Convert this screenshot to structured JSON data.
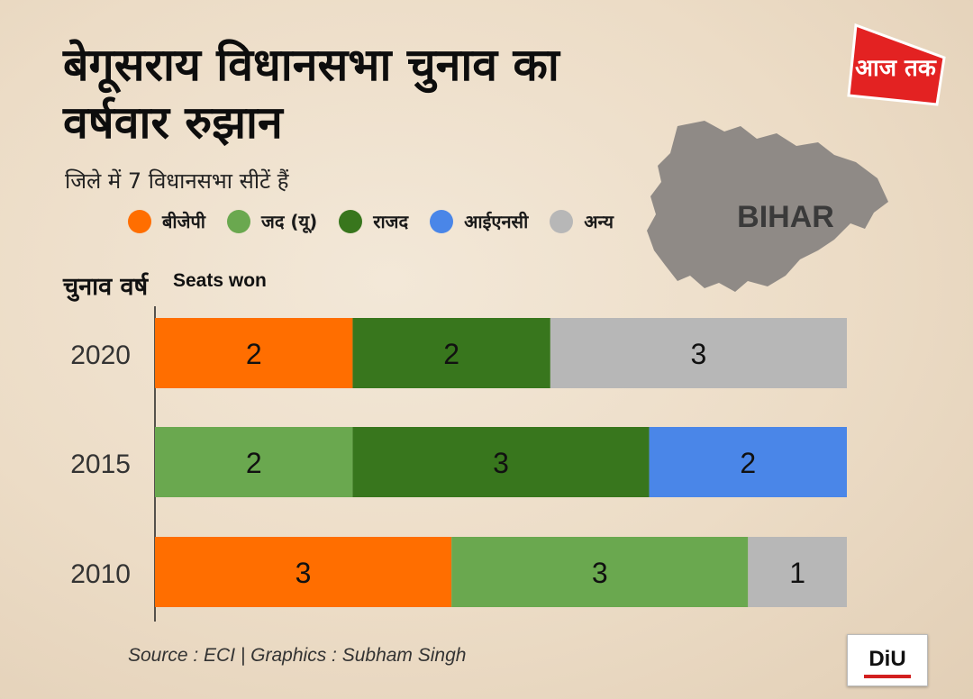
{
  "header": {
    "title_line1": "बेगूसराय विधानसभा चुनाव का",
    "title_line2": "वर्षवार रुझान",
    "subtitle": "जिले में 7 विधानसभा सीटें हैं"
  },
  "legend": [
    {
      "label": "बीजेपी",
      "color": "#ff6e00"
    },
    {
      "label": "जद (यू)",
      "color": "#6aa84f"
    },
    {
      "label": "राजद",
      "color": "#38761d"
    },
    {
      "label": "आईएनसी",
      "color": "#4a86e8"
    },
    {
      "label": "अन्य",
      "color": "#b7b7b7"
    }
  ],
  "map": {
    "label": "BIHAR",
    "color": "#8f8a86"
  },
  "logos": {
    "aaj_tak_text": "आज तक",
    "diu_text": "DiU"
  },
  "footer": {
    "source": "Source : ECI | Graphics : Subham Singh"
  },
  "chart_data": {
    "type": "bar",
    "orientation": "horizontal",
    "stacked": true,
    "ylabel": "चुनाव वर्ष",
    "xlabel": "Seats won",
    "xlim": [
      0,
      7
    ],
    "rows": [
      {
        "year": "2020",
        "segments": [
          {
            "party": "बीजेपी",
            "value": 2,
            "color": "#ff6e00"
          },
          {
            "party": "राजद",
            "value": 2,
            "color": "#38761d"
          },
          {
            "party": "अन्य",
            "value": 3,
            "color": "#b7b7b7"
          }
        ]
      },
      {
        "year": "2015",
        "segments": [
          {
            "party": "जद (यू)",
            "value": 2,
            "color": "#6aa84f"
          },
          {
            "party": "राजद",
            "value": 3,
            "color": "#38761d"
          },
          {
            "party": "आईएनसी",
            "value": 2,
            "color": "#4a86e8"
          }
        ]
      },
      {
        "year": "2010",
        "segments": [
          {
            "party": "बीजेपी",
            "value": 3,
            "color": "#ff6e00"
          },
          {
            "party": "जद (यू)",
            "value": 3,
            "color": "#6aa84f"
          },
          {
            "party": "अन्य",
            "value": 1,
            "color": "#b7b7b7"
          }
        ]
      }
    ]
  }
}
